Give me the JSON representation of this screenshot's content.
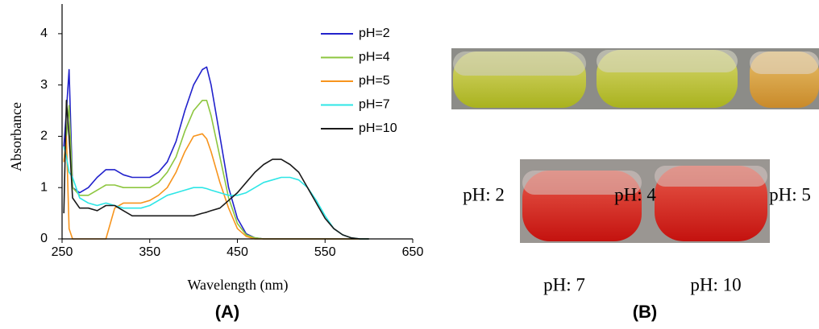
{
  "chart_data": {
    "type": "line",
    "xlabel": "Wavelength (nm)",
    "ylabel": "Absorbance",
    "x": [
      252,
      255,
      258,
      262,
      270,
      280,
      290,
      300,
      310,
      320,
      330,
      340,
      350,
      360,
      370,
      380,
      390,
      400,
      410,
      415,
      420,
      430,
      440,
      450,
      460,
      470,
      480,
      490,
      500,
      510,
      520,
      530,
      540,
      550,
      560,
      570,
      580,
      590,
      600
    ],
    "series": [
      {
        "name": "pH=2",
        "color": "#2222cc",
        "values": [
          1.8,
          2.5,
          3.3,
          1.0,
          0.9,
          1.0,
          1.2,
          1.35,
          1.35,
          1.25,
          1.2,
          1.2,
          1.2,
          1.3,
          1.5,
          1.9,
          2.5,
          3.0,
          3.3,
          3.35,
          3.0,
          2.0,
          1.0,
          0.4,
          0.1,
          0.02,
          0,
          0,
          0,
          0,
          0,
          0,
          0,
          0,
          0,
          0,
          0,
          0,
          0
        ]
      },
      {
        "name": "pH=4",
        "color": "#8dc63f",
        "values": [
          1.5,
          2.0,
          2.6,
          1.0,
          0.85,
          0.85,
          0.95,
          1.05,
          1.05,
          1.0,
          1.0,
          1.0,
          1.0,
          1.1,
          1.3,
          1.6,
          2.1,
          2.5,
          2.7,
          2.7,
          2.4,
          1.6,
          0.8,
          0.3,
          0.08,
          0.02,
          0,
          0,
          0,
          0,
          0,
          0,
          0,
          0,
          0,
          0,
          0,
          0,
          0
        ]
      },
      {
        "name": "pH=5",
        "color": "#f7941d",
        "values": [
          1.5,
          2.0,
          0.2,
          0,
          0,
          0,
          0,
          0,
          0.6,
          0.7,
          0.7,
          0.7,
          0.75,
          0.85,
          1.0,
          1.3,
          1.7,
          2.0,
          2.05,
          1.95,
          1.7,
          1.1,
          0.6,
          0.2,
          0.05,
          0,
          0,
          0,
          0,
          0,
          0,
          0,
          0,
          0,
          0,
          0,
          0,
          0,
          0
        ]
      },
      {
        "name": "pH=7",
        "color": "#2ee6e6",
        "values": [
          1.8,
          1.6,
          1.3,
          1.2,
          0.8,
          0.7,
          0.65,
          0.7,
          0.65,
          0.6,
          0.6,
          0.6,
          0.65,
          0.75,
          0.85,
          0.9,
          0.95,
          1.0,
          1.0,
          0.98,
          0.95,
          0.9,
          0.85,
          0.85,
          0.9,
          1.0,
          1.1,
          1.15,
          1.2,
          1.2,
          1.15,
          1.0,
          0.75,
          0.45,
          0.2,
          0.08,
          0.02,
          0,
          0
        ]
      },
      {
        "name": "pH=10",
        "color": "#1a1a1a",
        "values": [
          0.5,
          2.7,
          2.0,
          0.8,
          0.6,
          0.6,
          0.55,
          0.65,
          0.65,
          0.55,
          0.45,
          0.45,
          0.45,
          0.45,
          0.45,
          0.45,
          0.45,
          0.45,
          0.5,
          0.52,
          0.55,
          0.6,
          0.75,
          0.9,
          1.1,
          1.3,
          1.45,
          1.55,
          1.55,
          1.45,
          1.3,
          1.0,
          0.7,
          0.4,
          0.2,
          0.08,
          0.02,
          0,
          0
        ]
      }
    ],
    "xlim": [
      250,
      650
    ],
    "xticks": [
      250,
      350,
      450,
      550,
      650
    ],
    "ylim": [
      0,
      4.5
    ],
    "yticks": [
      0,
      1,
      2,
      3,
      4
    ],
    "grid": false
  },
  "figure": {
    "panel_a": "(A)",
    "panel_b": "(B)"
  },
  "photos": {
    "row1": [
      "pH: 2",
      "pH: 4",
      "pH: 5"
    ],
    "row2": [
      "pH: 7",
      "pH: 10"
    ]
  }
}
